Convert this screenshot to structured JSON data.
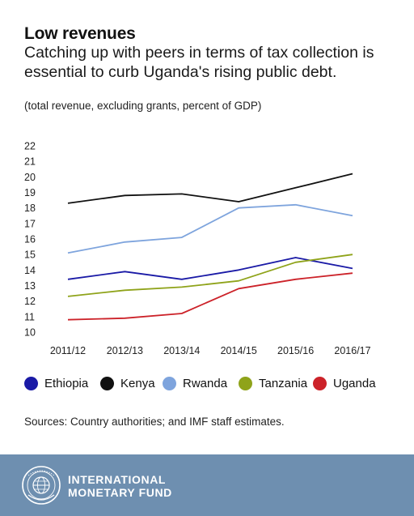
{
  "header": {
    "title": "Low revenues",
    "subtitle": "Catching up with peers in terms of tax collection is essential to curb Uganda's rising public debt.",
    "unit_note": "(total revenue, excluding grants, percent of GDP)"
  },
  "source": "Sources: Country authorities; and IMF staff estimates.",
  "footer": {
    "org_line1": "INTERNATIONAL",
    "org_line2": "MONETARY FUND",
    "seal_icon": "imf-seal-icon",
    "background": "#6e8fb0"
  },
  "chart_data": {
    "type": "line",
    "categories": [
      "2011/12",
      "2012/13",
      "2013/14",
      "2014/15",
      "2015/16",
      "2016/17"
    ],
    "ylim": [
      10,
      22
    ],
    "yticks": [
      10,
      11,
      12,
      13,
      14,
      15,
      16,
      17,
      18,
      19,
      20,
      21,
      22
    ],
    "grid": false,
    "legend_position": "bottom",
    "series": [
      {
        "name": "Ethiopia",
        "color": "#1a1aa6",
        "values": [
          13.4,
          13.9,
          13.4,
          14.0,
          14.8,
          14.1
        ]
      },
      {
        "name": "Kenya",
        "color": "#111111",
        "values": [
          18.3,
          18.8,
          18.9,
          18.4,
          19.3,
          20.2
        ]
      },
      {
        "name": "Rwanda",
        "color": "#7ea4dd",
        "values": [
          15.1,
          15.8,
          16.1,
          18.0,
          18.2,
          17.5
        ]
      },
      {
        "name": "Tanzania",
        "color": "#8fa31a",
        "values": [
          12.3,
          12.7,
          12.9,
          13.3,
          14.5,
          15.0
        ]
      },
      {
        "name": "Uganda",
        "color": "#cc2229",
        "values": [
          10.8,
          10.9,
          11.2,
          12.8,
          13.4,
          13.8
        ]
      }
    ]
  }
}
